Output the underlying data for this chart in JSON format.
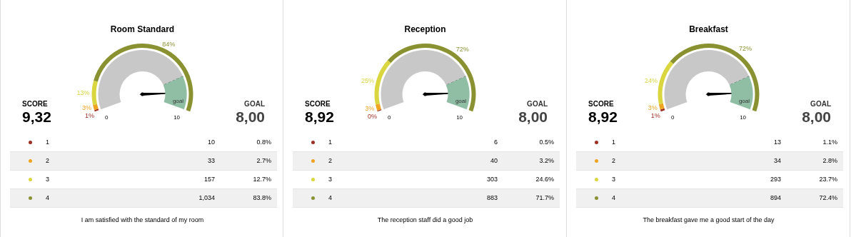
{
  "chart_data": [
    {
      "type": "donut",
      "title": "Room Standard",
      "categories": [
        "1",
        "2",
        "3",
        "4"
      ],
      "values": [
        0.8,
        2.7,
        12.7,
        83.8
      ],
      "colors": [
        "#9e2f23",
        "#eea321",
        "#d9d63f",
        "#8a9131"
      ],
      "value_labels": [
        "1%",
        "3%",
        "13%",
        "84%"
      ],
      "legend": "bottom",
      "annotations": [
        {
          "text": "10",
          "x": "1"
        },
        {
          "text": "0.8%",
          "x": "1"
        },
        {
          "text": "33",
          "x": "2"
        },
        {
          "text": "2.7%",
          "x": "2"
        },
        {
          "text": "157",
          "x": "3"
        },
        {
          "text": "12.7%",
          "x": "3"
        },
        {
          "text": "1,034",
          "x": "4"
        },
        {
          "text": "83.8%",
          "x": "4"
        },
        "I am satisfied with the standard of my room"
      ]
    },
    {
      "type": "donut",
      "categories": [
        null,
        "goal"
      ],
      "values": [
        80,
        20
      ],
      "colors": [
        "#c8c8c8",
        "#8fbea5"
      ],
      "needle": "goal",
      "line_style": "dashed",
      "annotations": [
        "SCORE",
        "9,32",
        "GOAL",
        "8,00",
        "0",
        "10"
      ]
    },
    {
      "type": "donut",
      "title": "Reception",
      "categories": [
        "1",
        "2",
        "3",
        "4"
      ],
      "values": [
        0.5,
        3.2,
        24.6,
        71.7
      ],
      "colors": [
        "#9e2f23",
        "#eea321",
        "#d9d63f",
        "#8a9131"
      ],
      "value_labels": [
        "0%",
        "3%",
        "25%",
        "72%"
      ],
      "legend": "bottom",
      "annotations": [
        {
          "text": "6",
          "x": "1"
        },
        {
          "text": "0.5%",
          "x": "1"
        },
        {
          "text": "40",
          "x": "2"
        },
        {
          "text": "3.2%",
          "x": "2"
        },
        {
          "text": "303",
          "x": "3"
        },
        {
          "text": "24.6%",
          "x": "3"
        },
        {
          "text": "883",
          "x": "4"
        },
        {
          "text": "71.7%",
          "x": "4"
        },
        "The reception staff did a good job"
      ]
    },
    {
      "type": "donut",
      "categories": [
        null,
        "goal"
      ],
      "values": [
        80,
        20
      ],
      "colors": [
        "#c8c8c8",
        "#8fbea5"
      ],
      "needle": "goal",
      "line_style": "dashed",
      "annotations": [
        "SCORE",
        "8,92",
        "GOAL",
        "8,00",
        "0",
        "10"
      ]
    },
    {
      "type": "donut",
      "title": "Breakfast",
      "categories": [
        "1",
        "2",
        "3",
        "4"
      ],
      "values": [
        1.1,
        2.8,
        23.7,
        72.4
      ],
      "colors": [
        "#9e2f23",
        "#eea321",
        "#d9d63f",
        "#8a9131"
      ],
      "value_labels": [
        "1%",
        "3%",
        "24%",
        "72%"
      ],
      "legend": "bottom",
      "annotations": [
        {
          "text": "13",
          "x": "1"
        },
        {
          "text": "1.1%",
          "x": "1"
        },
        {
          "text": "34",
          "x": "2"
        },
        {
          "text": "2.8%",
          "x": "2"
        },
        {
          "text": "293",
          "x": "3"
        },
        {
          "text": "23.7%",
          "x": "3"
        },
        {
          "text": "894",
          "x": "4"
        },
        {
          "text": "72.4%",
          "x": "4"
        },
        "The breakfast gave me a good start of the day"
      ]
    },
    {
      "type": "donut",
      "categories": [
        null,
        "goal"
      ],
      "values": [
        80,
        20
      ],
      "colors": [
        "#c8c8c8",
        "#8fbea5"
      ],
      "needle": "goal",
      "line_style": "dashed",
      "annotations": [
        "SCORE",
        "8,92",
        "GOAL",
        "8,00",
        "0",
        "10"
      ]
    }
  ]
}
